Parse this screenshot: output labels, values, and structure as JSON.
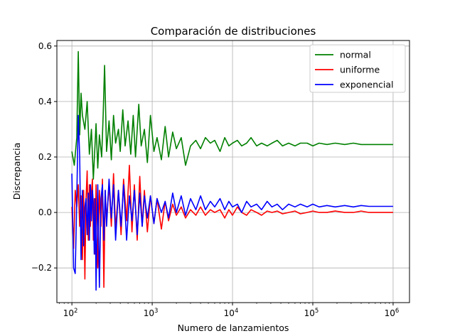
{
  "chart_data": {
    "type": "line",
    "title": "Comparación de distribuciones",
    "xlabel": "Numero de lanzamientos",
    "ylabel": "Discrepancia",
    "x_scale": "log",
    "xlim": [
      65,
      1600000
    ],
    "ylim": [
      -0.325,
      0.62
    ],
    "x_ticks": [
      {
        "value": 100,
        "base": "10",
        "exp": "2"
      },
      {
        "value": 1000,
        "base": "10",
        "exp": "3"
      },
      {
        "value": 10000,
        "base": "10",
        "exp": "4"
      },
      {
        "value": 100000,
        "base": "10",
        "exp": "5"
      },
      {
        "value": 1000000,
        "base": "10",
        "exp": "6"
      }
    ],
    "y_ticks": [
      {
        "value": -0.2,
        "label": "−0.2"
      },
      {
        "value": 0.0,
        "label": "0.0"
      },
      {
        "value": 0.2,
        "label": "0.2"
      },
      {
        "value": 0.4,
        "label": "0.4"
      },
      {
        "value": 0.6,
        "label": "0.6"
      }
    ],
    "grid": true,
    "legend_position": "top-right",
    "series": [
      {
        "name": "normal",
        "color": "#008000",
        "x": [
          100,
          107,
          115,
          120,
          125,
          130,
          135,
          145,
          155,
          165,
          175,
          185,
          200,
          210,
          220,
          235,
          245,
          255,
          270,
          290,
          310,
          330,
          350,
          380,
          400,
          430,
          460,
          500,
          540,
          580,
          620,
          680,
          730,
          800,
          870,
          950,
          1050,
          1150,
          1300,
          1450,
          1600,
          1800,
          2000,
          2300,
          2600,
          3000,
          3500,
          4000,
          4600,
          5300,
          6000,
          7000,
          8000,
          9000,
          10000,
          11500,
          13000,
          15000,
          17000,
          20000,
          23000,
          27000,
          31000,
          36000,
          42000,
          50000,
          60000,
          70000,
          85000,
          100000,
          120000,
          150000,
          190000,
          250000,
          320000,
          400000,
          500000,
          650000,
          800000,
          1000000
        ],
        "values": [
          0.22,
          0.17,
          0.27,
          0.58,
          0.28,
          0.43,
          0.35,
          0.3,
          0.4,
          0.21,
          0.3,
          0.12,
          0.32,
          0.16,
          0.28,
          0.2,
          0.35,
          0.53,
          0.22,
          0.33,
          0.19,
          0.35,
          0.25,
          0.3,
          0.22,
          0.37,
          0.24,
          0.33,
          0.21,
          0.35,
          0.2,
          0.39,
          0.24,
          0.3,
          0.18,
          0.35,
          0.22,
          0.27,
          0.19,
          0.31,
          0.2,
          0.29,
          0.23,
          0.27,
          0.17,
          0.24,
          0.26,
          0.23,
          0.27,
          0.25,
          0.26,
          0.22,
          0.27,
          0.24,
          0.25,
          0.26,
          0.24,
          0.25,
          0.27,
          0.24,
          0.25,
          0.24,
          0.25,
          0.26,
          0.24,
          0.25,
          0.24,
          0.25,
          0.25,
          0.24,
          0.25,
          0.245,
          0.25,
          0.245,
          0.25,
          0.245,
          0.245,
          0.245,
          0.245,
          0.245
        ]
      },
      {
        "name": "uniforme",
        "color": "#ff0000",
        "x": [
          100,
          105,
          110,
          115,
          120,
          125,
          130,
          135,
          140,
          145,
          150,
          155,
          160,
          165,
          170,
          175,
          180,
          185,
          190,
          195,
          200,
          210,
          220,
          230,
          240,
          250,
          260,
          270,
          290,
          310,
          330,
          350,
          380,
          410,
          440,
          480,
          520,
          560,
          600,
          650,
          700,
          750,
          800,
          870,
          950,
          1050,
          1150,
          1300,
          1450,
          1600,
          1800,
          2000,
          2300,
          2600,
          3000,
          3500,
          4000,
          4600,
          5300,
          6000,
          7000,
          8000,
          9000,
          10000,
          11500,
          13000,
          15000,
          17000,
          20000,
          23000,
          27000,
          31000,
          36000,
          42000,
          50000,
          60000,
          70000,
          85000,
          100000,
          120000,
          150000,
          190000,
          250000,
          320000,
          400000,
          500000,
          650000,
          800000,
          1000000
        ],
        "values": [
          0.02,
          -0.13,
          0.08,
          0.02,
          0.1,
          -0.05,
          0.06,
          -0.17,
          0.08,
          -0.24,
          0.05,
          0.15,
          -0.1,
          0.1,
          -0.05,
          0.07,
          0.12,
          -0.1,
          0.05,
          -0.15,
          0.1,
          -0.2,
          0.08,
          -0.05,
          0.12,
          -0.27,
          0.08,
          -0.03,
          0.1,
          -0.05,
          0.14,
          -0.06,
          0.08,
          -0.08,
          0.12,
          -0.03,
          0.17,
          -0.07,
          0.1,
          -0.1,
          0.13,
          -0.05,
          0.08,
          -0.07,
          0.06,
          -0.04,
          0.05,
          -0.06,
          0.04,
          -0.03,
          0.03,
          -0.01,
          0.02,
          -0.02,
          0.01,
          -0.01,
          0.02,
          -0.01,
          0.01,
          0.0,
          0.01,
          -0.02,
          0.01,
          -0.01,
          0.02,
          0.0,
          -0.01,
          0.01,
          0.0,
          -0.01,
          0.005,
          0.0,
          0.005,
          -0.005,
          0.0,
          0.005,
          -0.005,
          0.0,
          0.005,
          0.0,
          0.0,
          0.005,
          0.0,
          0.0,
          0.005,
          0.0,
          0.0,
          0.0,
          0.0
        ]
      },
      {
        "name": "exponencial",
        "color": "#0000ff",
        "x": [
          100,
          105,
          110,
          115,
          120,
          125,
          130,
          135,
          140,
          145,
          150,
          155,
          160,
          165,
          170,
          175,
          180,
          185,
          190,
          195,
          200,
          210,
          220,
          230,
          240,
          250,
          260,
          270,
          290,
          310,
          330,
          350,
          380,
          410,
          440,
          480,
          520,
          560,
          600,
          650,
          700,
          750,
          800,
          870,
          950,
          1050,
          1150,
          1300,
          1450,
          1600,
          1800,
          2000,
          2300,
          2600,
          3000,
          3500,
          4000,
          4600,
          5300,
          6000,
          7000,
          8000,
          9000,
          10000,
          11500,
          13000,
          15000,
          17000,
          20000,
          23000,
          27000,
          31000,
          36000,
          42000,
          50000,
          60000,
          70000,
          85000,
          100000,
          120000,
          150000,
          190000,
          250000,
          320000,
          400000,
          500000,
          650000,
          800000,
          1000000
        ],
        "values": [
          0.14,
          -0.2,
          -0.22,
          0.05,
          0.35,
          0.2,
          -0.17,
          0.08,
          -0.12,
          0.02,
          0.05,
          -0.08,
          0.07,
          -0.1,
          0.1,
          -0.03,
          0.08,
          0.03,
          -0.15,
          0.05,
          -0.28,
          0.1,
          -0.27,
          0.05,
          0.1,
          -0.1,
          0.08,
          -0.05,
          0.12,
          -0.02,
          0.1,
          -0.1,
          0.08,
          -0.05,
          0.1,
          -0.1,
          0.06,
          -0.03,
          0.08,
          -0.08,
          0.07,
          -0.05,
          0.06,
          -0.02,
          0.06,
          -0.04,
          0.05,
          0.0,
          0.04,
          -0.02,
          0.07,
          0.0,
          0.06,
          -0.01,
          0.05,
          0.01,
          0.06,
          0.01,
          0.04,
          0.02,
          0.05,
          0.01,
          0.04,
          0.02,
          0.03,
          0.0,
          0.04,
          0.02,
          0.03,
          0.01,
          0.04,
          0.02,
          0.03,
          0.01,
          0.03,
          0.02,
          0.03,
          0.02,
          0.03,
          0.02,
          0.025,
          0.02,
          0.025,
          0.02,
          0.025,
          0.022,
          0.022,
          0.022,
          0.022
        ]
      }
    ]
  }
}
